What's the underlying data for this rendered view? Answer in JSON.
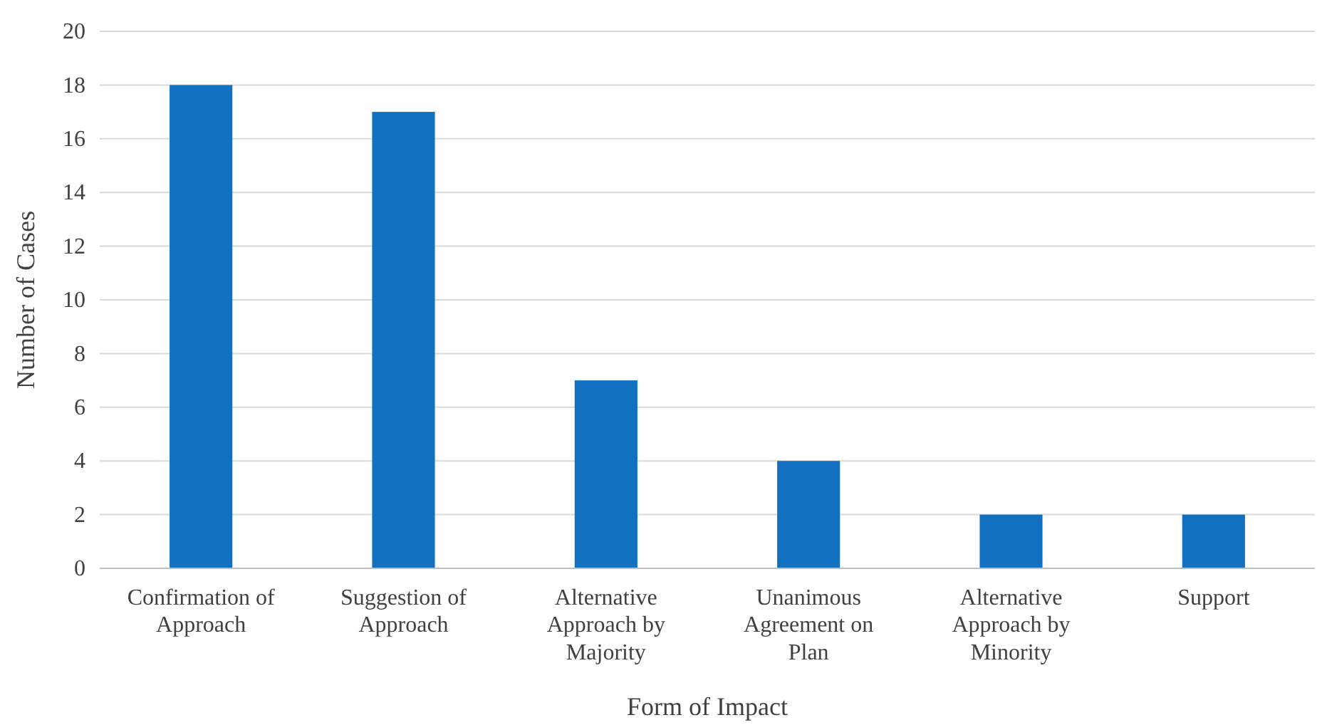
{
  "chart_data": {
    "type": "bar",
    "xlabel": "Form of Impact",
    "ylabel": "Number of Cases",
    "categories": [
      "Confirmation of Approach",
      "Suggestion of Approach",
      "Alternative Approach by Majority",
      "Unanimous Agreement on Plan",
      "Alternative Approach by Minority",
      "Support"
    ],
    "values": [
      18,
      17,
      7,
      4,
      2,
      2
    ],
    "color": "#1170bf",
    "ylim": [
      0,
      20
    ],
    "yticks": [
      0,
      2,
      4,
      6,
      8,
      10,
      12,
      14,
      16,
      18,
      20
    ],
    "grid": "y"
  }
}
